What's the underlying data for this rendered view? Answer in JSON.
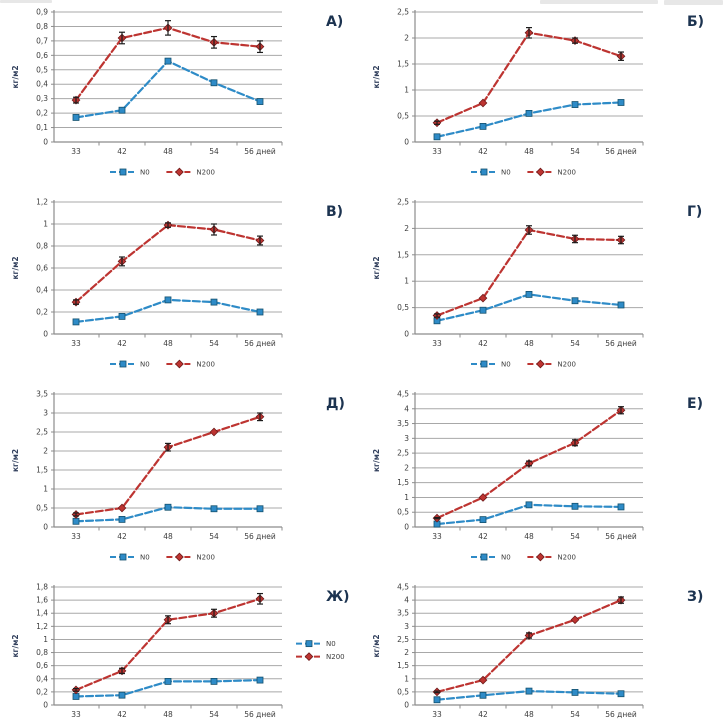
{
  "page": {
    "background": "#ffffff",
    "description_labels": []
  },
  "colors": {
    "n0": "#2e8bc7",
    "n200": "#bd3431",
    "grid": "#a8a8a8",
    "axis": "#8c8c8c",
    "tick_text": "#3d3d3d",
    "error_bar": "#1c1c1c",
    "panel_label": "#1c3350"
  },
  "chart_data": [
    {
      "type": "line",
      "label": "А)",
      "ylabel": "кг/м2",
      "categories": [
        "33",
        "42",
        "48",
        "54",
        "56 дней"
      ],
      "ylim": [
        0,
        0.9
      ],
      "ystep": 0.1,
      "grid": true,
      "legend_position": "bottom",
      "series": [
        {
          "name": "N0",
          "color_key": "n0",
          "marker": "square",
          "values": [
            0.17,
            0.22,
            0.56,
            0.41,
            0.28
          ],
          "errors": [
            0,
            0,
            0,
            0,
            0
          ]
        },
        {
          "name": "N200",
          "color_key": "n200",
          "marker": "diamond",
          "values": [
            0.29,
            0.72,
            0.79,
            0.69,
            0.66
          ],
          "errors": [
            0.02,
            0.04,
            0.05,
            0.04,
            0.04
          ]
        }
      ]
    },
    {
      "type": "line",
      "label": "Б)",
      "ylabel": "кг/м2",
      "categories": [
        "33",
        "42",
        "48",
        "54",
        "56 дней"
      ],
      "ylim": [
        0,
        2.5
      ],
      "ystep": 0.5,
      "grid": true,
      "legend_position": "bottom",
      "series": [
        {
          "name": "N0",
          "color_key": "n0",
          "marker": "square",
          "values": [
            0.1,
            0.3,
            0.55,
            0.72,
            0.76
          ],
          "errors": [
            0,
            0,
            0,
            0,
            0
          ]
        },
        {
          "name": "N200",
          "color_key": "n200",
          "marker": "diamond",
          "values": [
            0.37,
            0.75,
            2.1,
            1.95,
            1.65
          ],
          "errors": [
            0.03,
            0,
            0.1,
            0.05,
            0.08
          ]
        }
      ]
    },
    {
      "type": "line",
      "label": "В)",
      "ylabel": "кг/м2",
      "categories": [
        "33",
        "42",
        "48",
        "54",
        "56 дней"
      ],
      "ylim": [
        0,
        1.2
      ],
      "ystep": 0.2,
      "grid": true,
      "legend_position": "bottom",
      "series": [
        {
          "name": "N0",
          "color_key": "n0",
          "marker": "square",
          "values": [
            0.11,
            0.16,
            0.31,
            0.29,
            0.2
          ],
          "errors": [
            0,
            0,
            0,
            0,
            0
          ]
        },
        {
          "name": "N200",
          "color_key": "n200",
          "marker": "diamond",
          "values": [
            0.29,
            0.66,
            0.99,
            0.95,
            0.85
          ],
          "errors": [
            0.02,
            0.04,
            0.02,
            0.05,
            0.04
          ]
        }
      ]
    },
    {
      "type": "line",
      "label": "Г)",
      "ylabel": "кг/м2",
      "categories": [
        "33",
        "42",
        "48",
        "54",
        "56 дней"
      ],
      "ylim": [
        0,
        2.5
      ],
      "ystep": 0.5,
      "grid": true,
      "legend_position": "bottom",
      "series": [
        {
          "name": "N0",
          "color_key": "n0",
          "marker": "square",
          "values": [
            0.25,
            0.45,
            0.75,
            0.63,
            0.55
          ],
          "errors": [
            0,
            0,
            0,
            0,
            0
          ]
        },
        {
          "name": "N200",
          "color_key": "n200",
          "marker": "diamond",
          "values": [
            0.35,
            0.68,
            1.97,
            1.8,
            1.78
          ],
          "errors": [
            0.03,
            0,
            0.08,
            0.07,
            0.07
          ]
        }
      ]
    },
    {
      "type": "line",
      "label": "Д)",
      "ylabel": "кг/м2",
      "categories": [
        "33",
        "42",
        "48",
        "54",
        "56 дней"
      ],
      "ylim": [
        0,
        3.5
      ],
      "ystep": 0.5,
      "grid": true,
      "legend_position": "bottom",
      "series": [
        {
          "name": "N0",
          "color_key": "n0",
          "marker": "square",
          "values": [
            0.15,
            0.2,
            0.52,
            0.48,
            0.48
          ],
          "errors": [
            0,
            0,
            0,
            0,
            0
          ]
        },
        {
          "name": "N200",
          "color_key": "n200",
          "marker": "diamond",
          "values": [
            0.33,
            0.5,
            2.1,
            2.5,
            2.9
          ],
          "errors": [
            0.04,
            0,
            0.1,
            0,
            0.1
          ]
        }
      ]
    },
    {
      "type": "line",
      "label": "Е)",
      "ylabel": "кг/м2",
      "categories": [
        "33",
        "42",
        "48",
        "54",
        "56 дней"
      ],
      "ylim": [
        0,
        4.5
      ],
      "ystep": 0.5,
      "grid": true,
      "legend_position": "bottom",
      "series": [
        {
          "name": "N0",
          "color_key": "n0",
          "marker": "square",
          "values": [
            0.1,
            0.25,
            0.75,
            0.7,
            0.68
          ],
          "errors": [
            0,
            0,
            0,
            0,
            0
          ]
        },
        {
          "name": "N200",
          "color_key": "n200",
          "marker": "diamond",
          "values": [
            0.3,
            1.0,
            2.15,
            2.85,
            3.95
          ],
          "errors": [
            0.02,
            0,
            0.08,
            0.1,
            0.12
          ]
        }
      ]
    },
    {
      "type": "line",
      "label": "Ж)",
      "ylabel": "кг/м2",
      "categories": [
        "33",
        "42",
        "48",
        "54",
        "56 дней"
      ],
      "ylim": [
        0,
        1.8
      ],
      "ystep": 0.2,
      "grid": true,
      "legend_position": "right",
      "series": [
        {
          "name": "N0",
          "color_key": "n0",
          "marker": "square",
          "values": [
            0.13,
            0.15,
            0.36,
            0.36,
            0.38
          ],
          "errors": [
            0,
            0,
            0,
            0,
            0
          ]
        },
        {
          "name": "N200",
          "color_key": "n200",
          "marker": "diamond",
          "values": [
            0.23,
            0.52,
            1.3,
            1.4,
            1.62
          ],
          "errors": [
            0.02,
            0.04,
            0.06,
            0.06,
            0.08
          ]
        }
      ]
    },
    {
      "type": "line",
      "label": "З)",
      "ylabel": "кг/м2",
      "categories": [
        "33",
        "42",
        "48",
        "54",
        "56 дней"
      ],
      "ylim": [
        0,
        4.5
      ],
      "ystep": 0.5,
      "grid": true,
      "legend_position": "none",
      "series": [
        {
          "name": "N0",
          "color_key": "n0",
          "marker": "square",
          "values": [
            0.2,
            0.37,
            0.53,
            0.48,
            0.43
          ],
          "errors": [
            0,
            0,
            0,
            0,
            0
          ]
        },
        {
          "name": "N200",
          "color_key": "n200",
          "marker": "diamond",
          "values": [
            0.5,
            0.95,
            2.65,
            3.25,
            4.0
          ],
          "errors": [
            0.03,
            0,
            0.1,
            0,
            0.12
          ]
        }
      ]
    }
  ]
}
